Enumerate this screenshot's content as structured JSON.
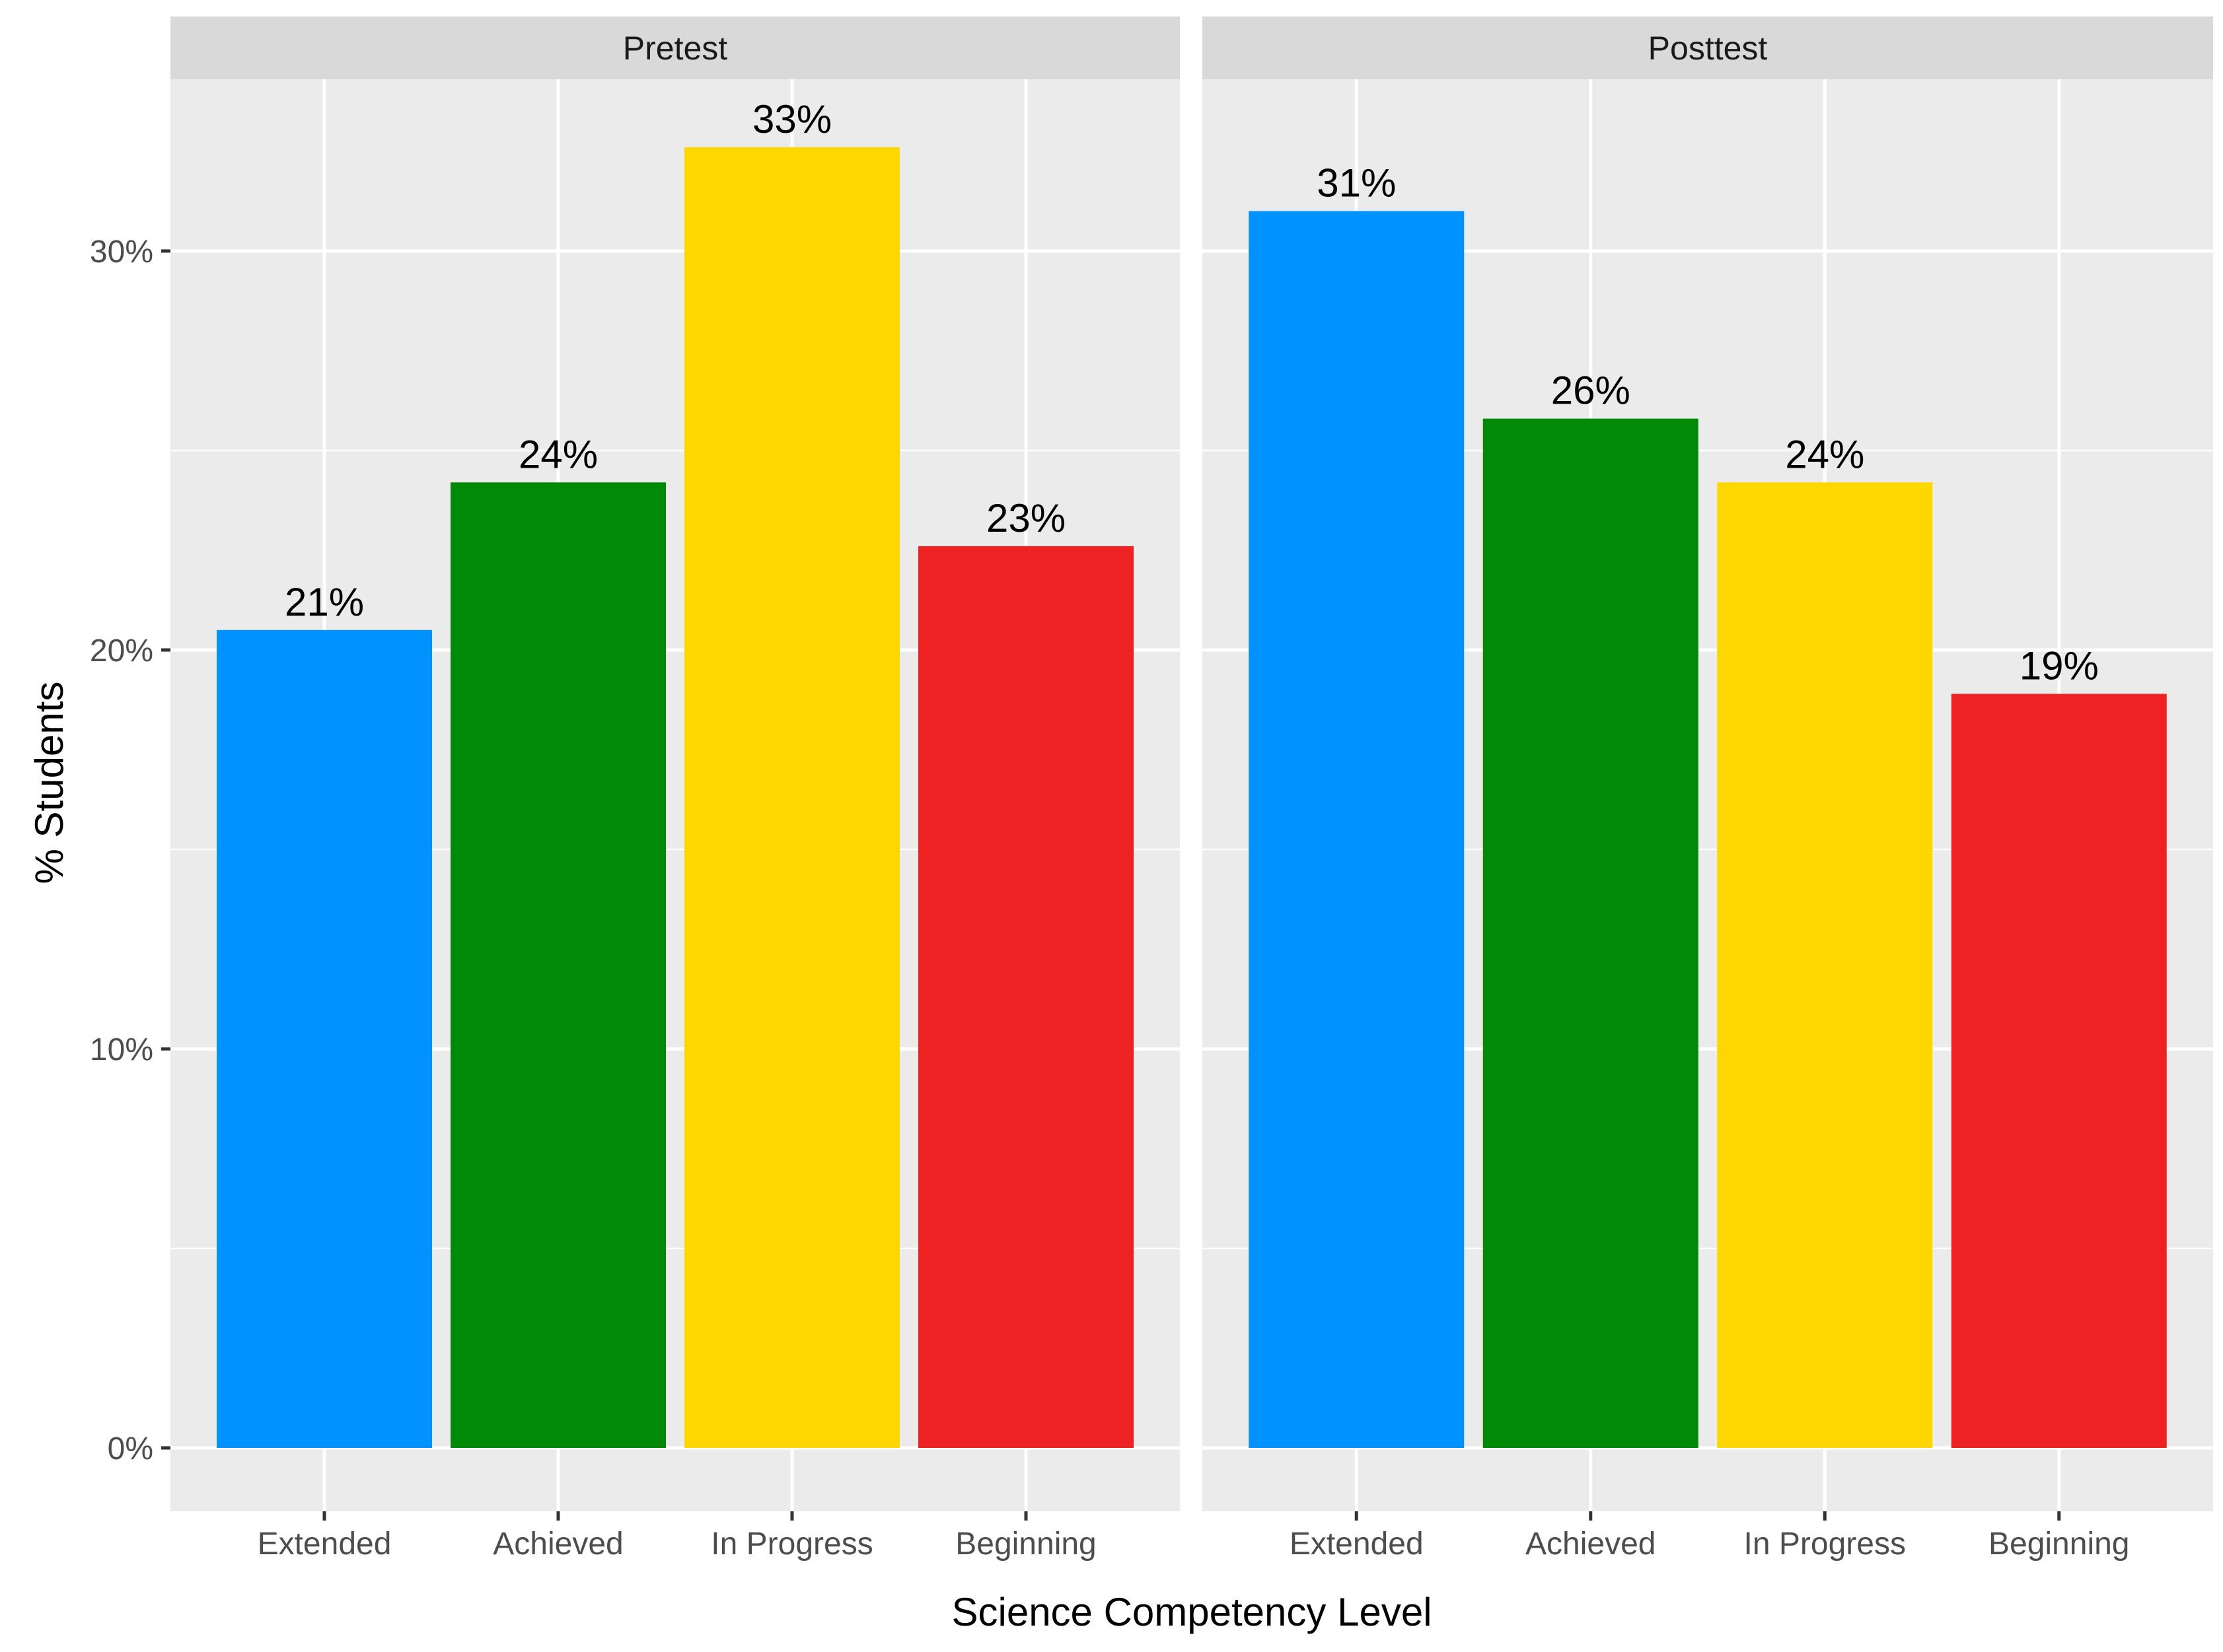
{
  "chart_data": {
    "type": "bar",
    "faceted": true,
    "xlabel": "Science Competency Level",
    "ylabel": "% Students",
    "ylim": [
      0,
      35
    ],
    "y_ticks": [
      0,
      10,
      20,
      30
    ],
    "y_tick_labels": [
      "0%",
      "10%",
      "20%",
      "30%"
    ],
    "categories": [
      "Extended",
      "Achieved",
      "In Progress",
      "Beginning"
    ],
    "category_colors": [
      "#0092ff",
      "#008a08",
      "#ffd700",
      "#ee2222"
    ],
    "panels": [
      {
        "name": "Pretest",
        "values": [
          20.5,
          24.2,
          32.6,
          22.6
        ],
        "labels": [
          "21%",
          "24%",
          "33%",
          "23%"
        ]
      },
      {
        "name": "Posttest",
        "values": [
          31.0,
          25.8,
          24.2,
          18.9
        ],
        "labels": [
          "31%",
          "26%",
          "24%",
          "19%"
        ]
      }
    ]
  }
}
